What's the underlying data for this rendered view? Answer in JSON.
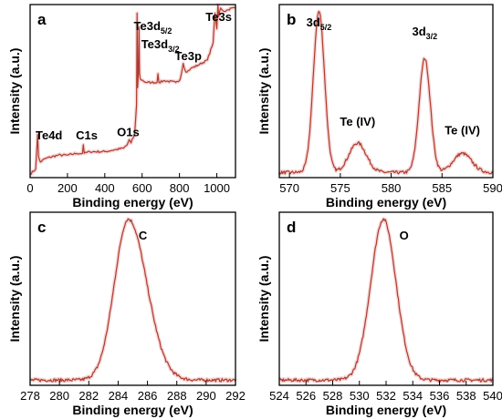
{
  "chart_data": [
    {
      "panel": "a",
      "type": "line",
      "xlabel": "Binding energy (eV)",
      "ylabel": "Intensity (a.u.)",
      "xlim": [
        0,
        1100
      ],
      "ylim": [
        0,
        1
      ],
      "xticks": [
        0,
        200,
        400,
        600,
        800,
        1000
      ],
      "annotations": [
        {
          "text": "Te4d",
          "x": 40,
          "y": 0.25
        },
        {
          "text": "C1s",
          "x": 285,
          "y": 0.2
        },
        {
          "text": "O1s",
          "x": 531,
          "y": 0.24
        },
        {
          "text": "Te3d",
          "sub": "5/2",
          "x": 573,
          "y": 0.97
        },
        {
          "text": "Te3d",
          "sub": "3/2",
          "x": 583,
          "y": 0.86
        },
        {
          "text": "Te3p",
          "x": 820,
          "y": 0.57
        },
        {
          "text": "Te3s",
          "x": 1006,
          "y": 1.0
        }
      ],
      "series": [
        {
          "x": [
            0,
            30,
            40,
            45,
            55,
            80,
            150,
            200,
            250,
            280,
            285,
            290,
            320,
            400,
            450,
            500,
            520,
            531,
            540,
            560,
            570,
            573,
            576,
            580,
            583,
            586,
            590,
            620,
            650,
            680,
            685,
            690,
            720,
            780,
            800,
            810,
            820,
            830,
            840,
            860,
            900,
            950,
            980,
            990,
            1000,
            1006,
            1010,
            1020,
            1040,
            1060,
            1080,
            1100
          ],
          "y": [
            0.02,
            0.05,
            0.25,
            0.12,
            0.09,
            0.11,
            0.13,
            0.13,
            0.14,
            0.14,
            0.19,
            0.14,
            0.15,
            0.15,
            0.16,
            0.17,
            0.19,
            0.22,
            0.2,
            0.25,
            0.42,
            0.95,
            0.52,
            0.6,
            0.87,
            0.6,
            0.57,
            0.55,
            0.55,
            0.55,
            0.6,
            0.55,
            0.56,
            0.55,
            0.56,
            0.6,
            0.66,
            0.62,
            0.61,
            0.63,
            0.65,
            0.68,
            0.78,
            0.95,
            0.86,
            1.0,
            0.93,
            0.98,
            0.96,
            0.97,
            0.98,
            0.98
          ]
        }
      ]
    },
    {
      "panel": "b",
      "type": "line",
      "xlabel": "Binding energy (eV)",
      "ylabel": "Intensity (a.u.)",
      "xlim": [
        569,
        590
      ],
      "ylim": [
        0,
        1
      ],
      "xticks": [
        570,
        575,
        580,
        585,
        590
      ],
      "annotations": [
        {
          "text": "3d",
          "sub": "5/2",
          "x": 572.9,
          "y": 1.0
        },
        {
          "text": "3d",
          "sub": "3/2",
          "x": 583.3,
          "y": 0.75
        },
        {
          "text": "Te (IV)",
          "x": 576.7,
          "y": 0.3
        },
        {
          "text": "Te (IV)",
          "x": 587.0,
          "y": 0.22
        }
      ],
      "series": [
        {
          "peaks": [
            {
              "center": 572.9,
              "height": 0.93,
              "sigma": 0.55
            },
            {
              "center": 576.7,
              "height": 0.17,
              "sigma": 0.85
            },
            {
              "center": 583.3,
              "height": 0.66,
              "sigma": 0.55
            },
            {
              "center": 587.0,
              "height": 0.11,
              "sigma": 0.9
            }
          ],
          "baseline": 0.03
        }
      ]
    },
    {
      "panel": "c",
      "type": "line",
      "label": "C",
      "xlabel": "Binding energy (eV)",
      "ylabel": "Intensity (a.u.)",
      "xlim": [
        278,
        292
      ],
      "ylim": [
        0,
        1
      ],
      "xticks": [
        278,
        280,
        282,
        284,
        286,
        288,
        290,
        292
      ],
      "series": [
        {
          "peaks": [
            {
              "center": 284.7,
              "height": 0.93,
              "sigma": 0.95,
              "sigma_right": 1.25
            }
          ],
          "baseline": 0.03
        }
      ]
    },
    {
      "panel": "d",
      "type": "line",
      "label": "O",
      "xlabel": "Binding energy (eV)",
      "ylabel": "Intensity (a.u.)",
      "xlim": [
        524,
        540
      ],
      "ylim": [
        0,
        1
      ],
      "xticks": [
        524,
        526,
        528,
        530,
        532,
        534,
        536,
        538,
        540
      ],
      "series": [
        {
          "peaks": [
            {
              "center": 531.8,
              "height": 0.93,
              "sigma": 0.95
            }
          ],
          "baseline": 0.03
        }
      ]
    }
  ]
}
